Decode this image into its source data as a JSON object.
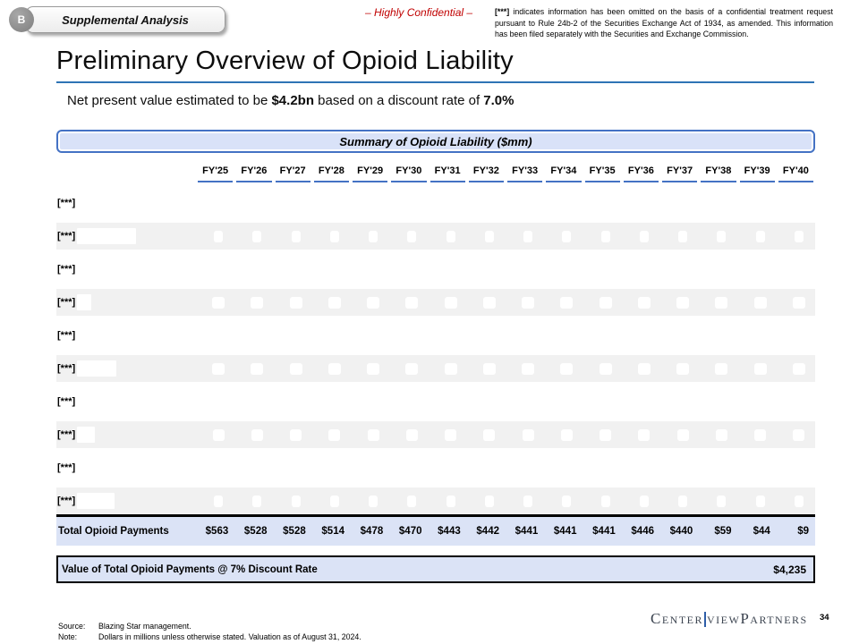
{
  "header": {
    "badge": "B",
    "tab_label": "Supplemental Analysis",
    "confidential_label": "– Highly Confidential –",
    "legal_prefix": "[***]",
    "legal_body": " indicates information has been omitted on the basis of a confidential treatment request pursuant to Rule 24b-2 of the Securities Exchange Act of 1934, as amended. This information has been filed separately with the Securities and Exchange Commission."
  },
  "title": "Preliminary Overview of Opioid Liability",
  "subtitle": {
    "pre": "Net present value estimated to be ",
    "bold1": "$4.2bn",
    "mid": " based on a discount rate of ",
    "bold2": "7.0%"
  },
  "table": {
    "banner": "Summary of Opioid Liability ($mm)",
    "columns": [
      "FY'25",
      "FY'26",
      "FY'27",
      "FY'28",
      "FY'29",
      "FY'30",
      "FY'31",
      "FY'32",
      "FY'33",
      "FY'34",
      "FY'35",
      "FY'36",
      "FY'37",
      "FY'38",
      "FY'39",
      "FY'40"
    ],
    "rows": [
      {
        "label": "[***]",
        "shaded": false
      },
      {
        "label": "[***]",
        "shaded": true,
        "patch_w": 66,
        "sq_w": 10
      },
      {
        "label": "[***]",
        "shaded": false
      },
      {
        "label": "[***]",
        "shaded": true,
        "patch_w": 16,
        "sq_w": 14
      },
      {
        "label": "[***]",
        "shaded": false
      },
      {
        "label": "[***]",
        "shaded": true,
        "patch_w": 44,
        "sq_w": 14
      },
      {
        "label": "[***]",
        "shaded": false
      },
      {
        "label": "[***]",
        "shaded": true,
        "patch_w": 20,
        "sq_w": 13
      },
      {
        "label": "[***]",
        "shaded": false
      },
      {
        "label": "[***]",
        "shaded": true,
        "patch_w": 42,
        "sq_w": 10
      }
    ],
    "total_row": {
      "label": "Total Opioid Payments",
      "values": [
        "$563",
        "$528",
        "$528",
        "$514",
        "$478",
        "$470",
        "$443",
        "$442",
        "$441",
        "$441",
        "$441",
        "$446",
        "$440",
        "$59",
        "$44",
        "$9"
      ]
    },
    "npv_row": {
      "label": "Value of Total Opioid Payments @ 7% Discount Rate",
      "value": "$4,235"
    }
  },
  "footer": {
    "source_label": "Source:",
    "source_text": "Blazing Star management.",
    "note_label": "Note:",
    "note_text": "Dollars in millions unless otherwise stated. Valuation as of August 31, 2024.",
    "logo_part1": "Center",
    "logo_part2": "view",
    "logo_part3": " Partners",
    "page_number": "34"
  },
  "colors": {
    "accent_blue": "#4472c4",
    "title_rule_blue": "#2e74b5",
    "lavender_fill": "#dbe3f6",
    "banner_fill": "#d9e2f8",
    "shaded_row": "#f1f1f1",
    "confidential_red": "#c00000",
    "logo_gray": "#3d4551"
  }
}
